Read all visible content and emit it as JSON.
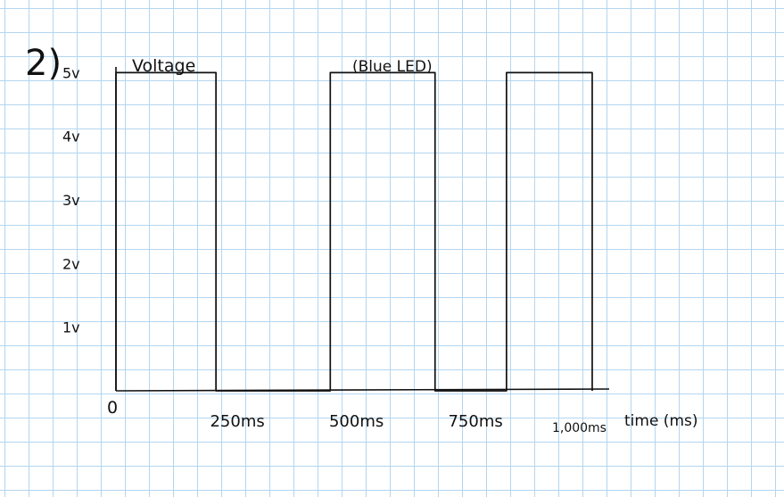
{
  "problem_number": "2)",
  "chart_data": {
    "type": "line",
    "title": "(Blue LED)",
    "ylabel": "Voltage",
    "xlabel": "time (ms)",
    "origin_label": "0",
    "y_tick_labels": [
      "1v",
      "2v",
      "3v",
      "4v",
      "5v"
    ],
    "y_ticks": [
      1,
      2,
      3,
      4,
      5
    ],
    "x_tick_labels": [
      "250ms",
      "500ms",
      "750ms",
      "1,000ms"
    ],
    "x_ticks": [
      250,
      500,
      750,
      1000
    ],
    "xlim": [
      0,
      1030
    ],
    "ylim": [
      0,
      5.3
    ],
    "grid": true,
    "series": [
      {
        "x": [
          0,
          0,
          210,
          210,
          450,
          450,
          670,
          670,
          820,
          820,
          1000,
          1000
        ],
        "y": [
          0,
          5,
          5,
          0,
          0,
          5,
          5,
          0,
          0,
          5,
          5,
          0
        ]
      }
    ],
    "colors": {
      "ink": "#111111",
      "grid": "#b3d6f0"
    }
  }
}
